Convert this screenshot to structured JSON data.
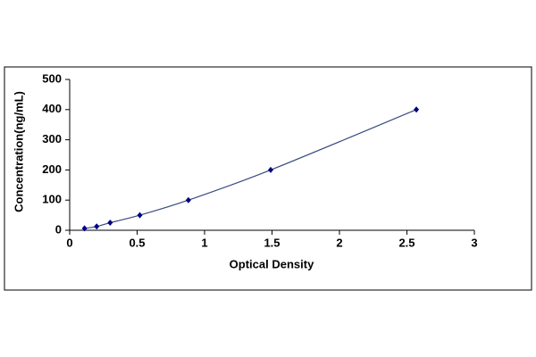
{
  "chart_data": {
    "type": "scatter",
    "x_label": "Optical Density",
    "y_label": "Concentration(ng/mL)",
    "x": [
      0.11,
      0.2,
      0.3,
      0.52,
      0.88,
      1.49,
      2.57
    ],
    "values": [
      6.25,
      12.5,
      25,
      50,
      100,
      200,
      400
    ],
    "color": "#000080",
    "line_color": "#3a4a80",
    "xlim": [
      0,
      3
    ],
    "xticks": [
      0,
      0.5,
      1,
      1.5,
      2,
      2.5,
      3
    ],
    "ylim": [
      0,
      500
    ],
    "yticks": [
      0,
      100,
      200,
      300,
      400,
      500
    ],
    "grid": false
  }
}
